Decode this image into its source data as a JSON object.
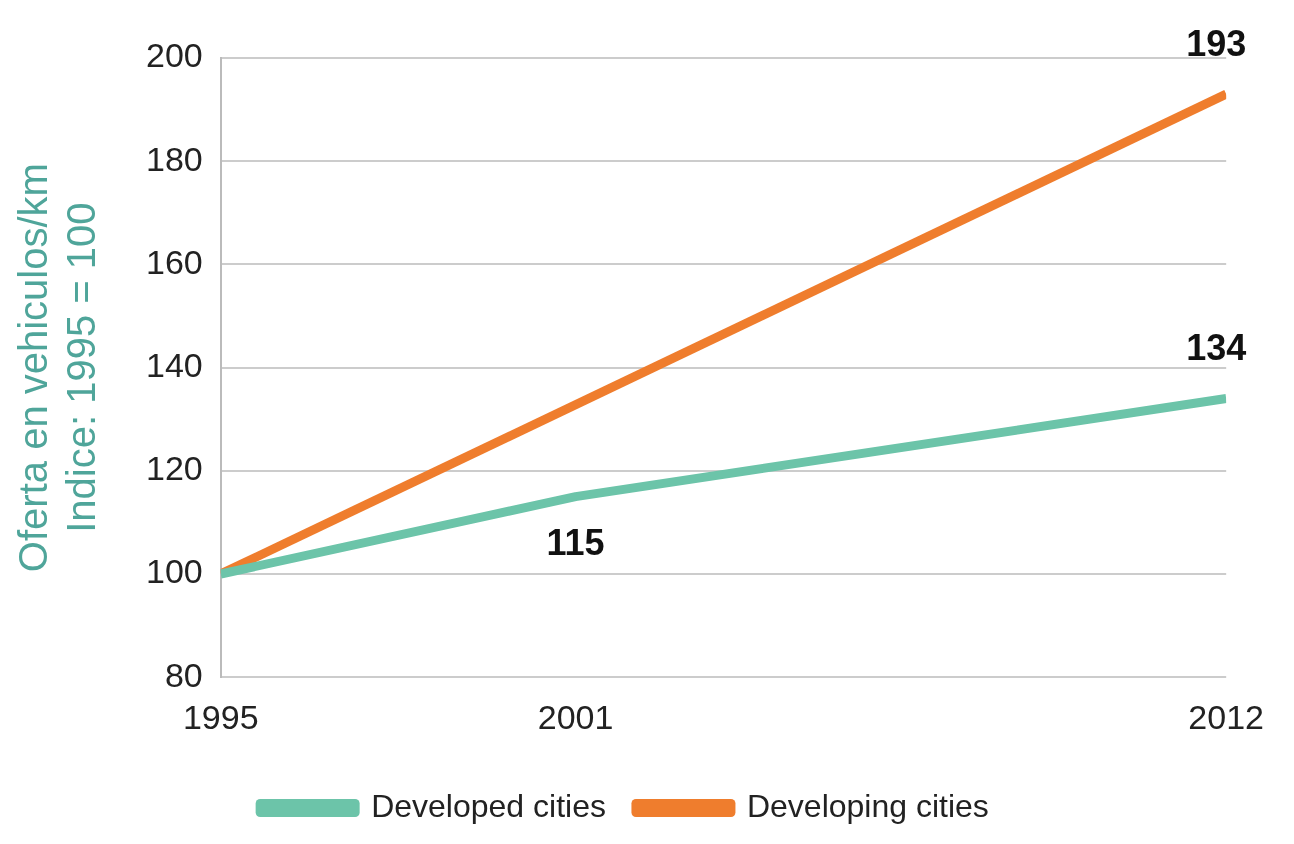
{
  "chart_data": {
    "type": "line",
    "ylabel": "Oferta en vehiculos/km\nIndice: 1995 = 100",
    "xlim": [
      1995,
      2012
    ],
    "xticks": [
      1995,
      2001,
      2012
    ],
    "ylim": [
      80,
      200
    ],
    "yticks": [
      80,
      100,
      120,
      140,
      160,
      180,
      200
    ],
    "grid": "y",
    "legend": "bottom",
    "marker": "none",
    "line_style": "solid",
    "series": [
      {
        "name": "Developed cities",
        "color": "#6cc4a9",
        "x": [
          1995,
          2001,
          2012
        ],
        "values": [
          100,
          115,
          134
        ],
        "value_labels": [
          null,
          "115",
          "134"
        ]
      },
      {
        "name": "Developing cities",
        "color": "#ef7d2d",
        "x": [
          1995,
          2012
        ],
        "values": [
          100,
          193
        ],
        "value_labels": [
          null,
          "193"
        ]
      }
    ]
  }
}
